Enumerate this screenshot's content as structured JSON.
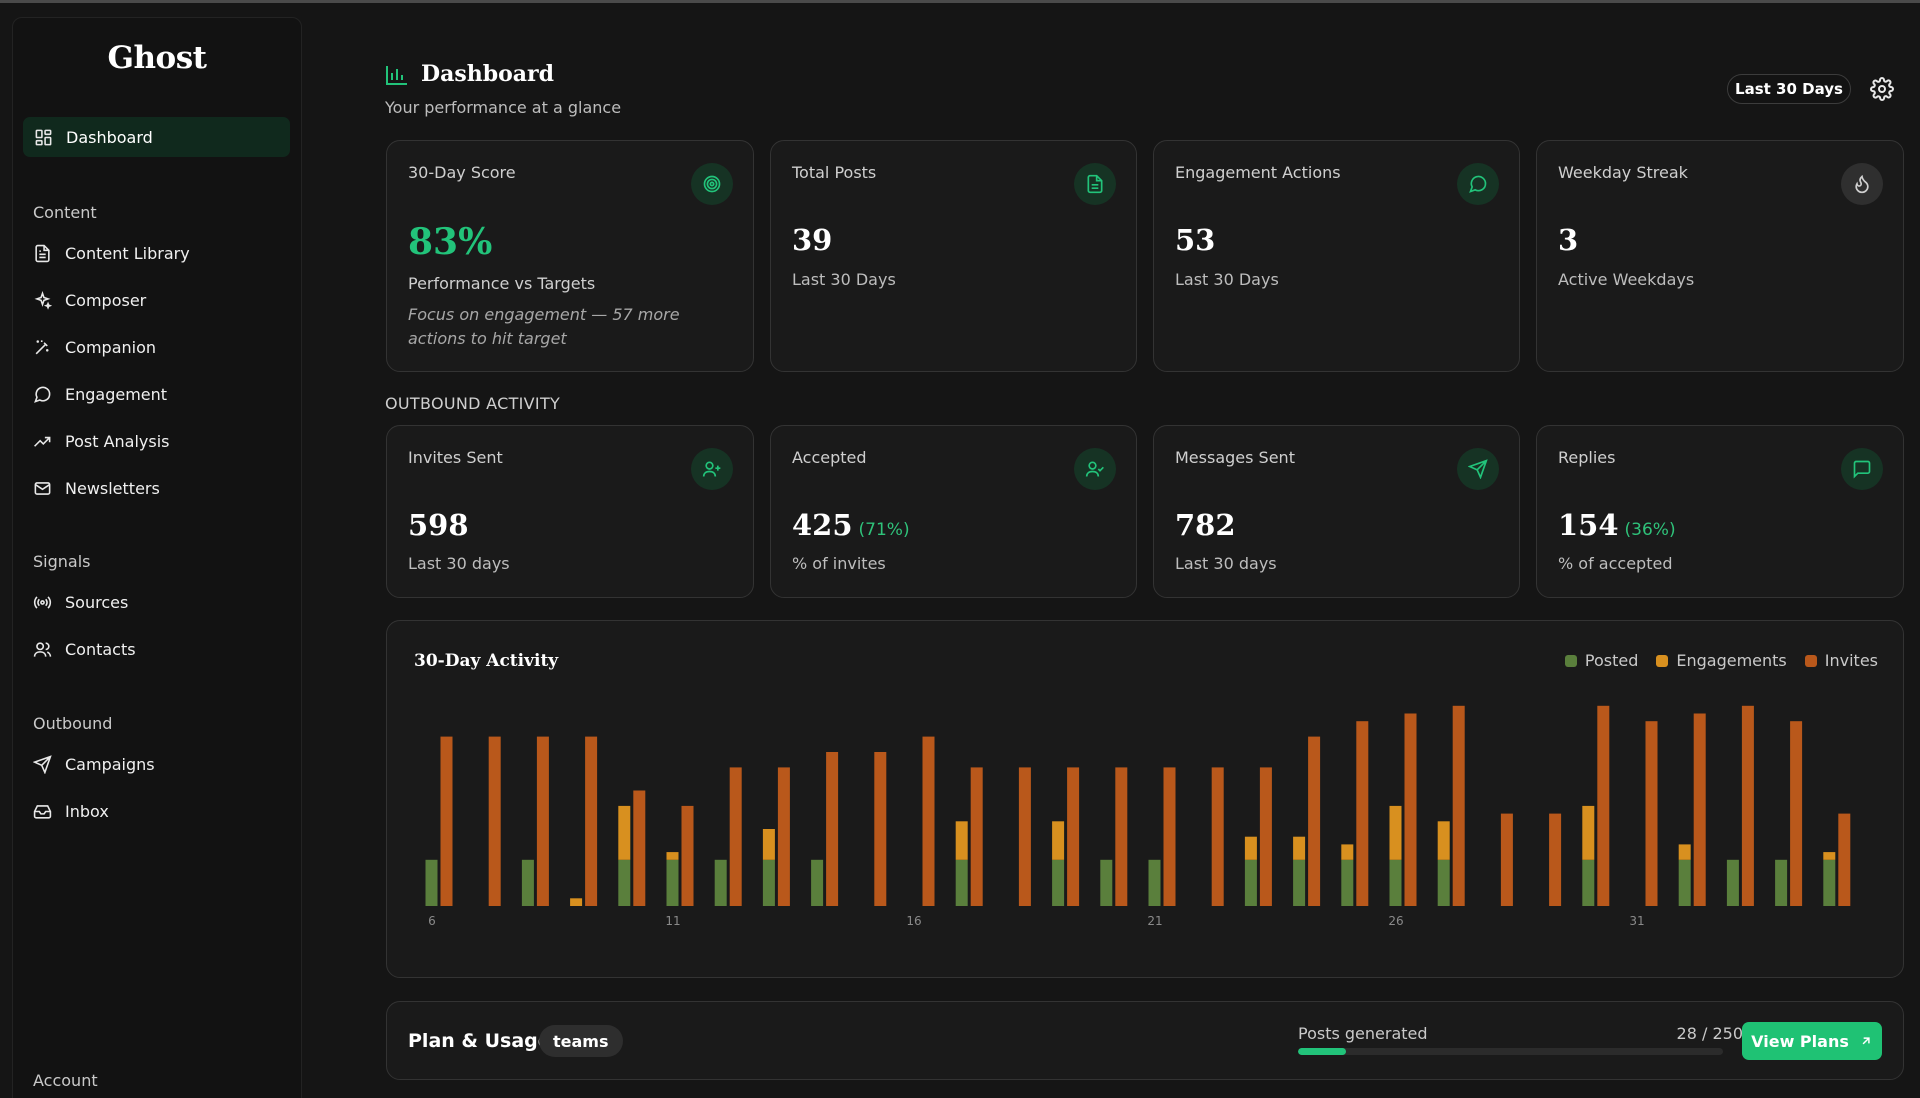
{
  "app": {
    "name": "Ghost"
  },
  "sidebar": {
    "active": {
      "label": "Dashboard",
      "icon": "dashboard-icon"
    },
    "sections": [
      {
        "title": "Content",
        "items": [
          {
            "label": "Content Library",
            "icon": "file-text-icon"
          },
          {
            "label": "Composer",
            "icon": "sparkles-icon"
          },
          {
            "label": "Companion",
            "icon": "magic-wand-icon"
          },
          {
            "label": "Engagement",
            "icon": "chat-bubble-icon"
          },
          {
            "label": "Post Analysis",
            "icon": "trending-up-icon"
          },
          {
            "label": "Newsletters",
            "icon": "mail-icon"
          }
        ]
      },
      {
        "title": "Signals",
        "items": [
          {
            "label": "Sources",
            "icon": "radio-icon"
          },
          {
            "label": "Contacts",
            "icon": "users-icon"
          }
        ]
      },
      {
        "title": "Outbound",
        "items": [
          {
            "label": "Campaigns",
            "icon": "send-icon"
          },
          {
            "label": "Inbox",
            "icon": "inbox-icon"
          }
        ]
      },
      {
        "title": "Account",
        "items": []
      }
    ]
  },
  "header": {
    "title": "Dashboard",
    "subtitle": "Your performance at a glance",
    "range": "Last 30 Days"
  },
  "stats": [
    {
      "label": "30-Day Score",
      "value": "83%",
      "sub": "Performance vs Targets",
      "note": "Focus on engagement — 57 more actions to hit target",
      "icon": "target-icon"
    },
    {
      "label": "Total Posts",
      "value": "39",
      "sub": "Last 30 Days",
      "icon": "document-icon"
    },
    {
      "label": "Engagement Actions",
      "value": "53",
      "sub": "Last 30 Days",
      "icon": "chat-icon"
    },
    {
      "label": "Weekday Streak",
      "value": "3",
      "sub": "Active Weekdays",
      "icon": "flame-icon"
    }
  ],
  "outbound": {
    "title": "OUTBOUND ACTIVITY",
    "cards": [
      {
        "label": "Invites Sent",
        "value": "598",
        "pct": "",
        "sub": "Last 30 days",
        "icon": "user-plus-icon"
      },
      {
        "label": "Accepted",
        "value": "425",
        "pct": "(71%)",
        "sub": "% of invites",
        "icon": "user-check-icon"
      },
      {
        "label": "Messages Sent",
        "value": "782",
        "pct": "",
        "sub": "Last 30 days",
        "icon": "send-icon"
      },
      {
        "label": "Replies",
        "value": "154",
        "pct": "(36%)",
        "sub": "% of accepted",
        "icon": "message-square-icon"
      }
    ]
  },
  "chart_data": {
    "type": "bar",
    "title": "30-Day Activity",
    "legend": "top-right",
    "colors": {
      "Posted": "#5a7f3c",
      "Engagements": "#d8901f",
      "Invites": "#b9581b"
    },
    "categories": [
      6,
      7,
      8,
      9,
      10,
      11,
      12,
      13,
      14,
      15,
      16,
      17,
      18,
      19,
      20,
      21,
      22,
      23,
      24,
      25,
      26,
      27,
      28,
      29,
      30,
      31,
      32,
      33,
      34,
      35
    ],
    "tick_labels": [
      "6",
      "11",
      "16",
      "21",
      "26",
      "31"
    ],
    "series": [
      {
        "name": "Posted",
        "values": [
          3,
          0,
          3,
          0,
          3,
          3,
          3,
          3,
          3,
          0,
          0,
          3,
          0,
          3,
          3,
          3,
          0,
          3,
          3,
          3,
          3,
          3,
          0,
          0,
          3,
          0,
          3,
          3,
          3,
          3
        ]
      },
      {
        "name": "Engagements",
        "values": [
          0,
          0,
          0,
          0.5,
          3.5,
          0.5,
          0,
          2,
          0,
          0,
          0,
          2.5,
          0,
          2.5,
          0,
          0,
          0,
          1.5,
          1.5,
          1,
          3.5,
          2.5,
          0,
          0,
          3.5,
          0,
          1,
          0,
          0,
          0.5
        ]
      },
      {
        "name": "Invites",
        "values": [
          11,
          11,
          11,
          11,
          7.5,
          6.5,
          9,
          9,
          10,
          10,
          11,
          9,
          9,
          9,
          9,
          9,
          9,
          9,
          11,
          12,
          12.5,
          13,
          6,
          6,
          13,
          12,
          12.5,
          13,
          12,
          6
        ]
      }
    ]
  },
  "plan": {
    "title": "Plan & Usage",
    "tier": "teams",
    "usage_label": "Posts generated",
    "usage_value": "28 / 250",
    "usage_fraction": 0.112,
    "button": "View Plans"
  },
  "colors": {
    "accent": "#22c37a",
    "background": "#151515",
    "card": "#1a1a1a"
  }
}
